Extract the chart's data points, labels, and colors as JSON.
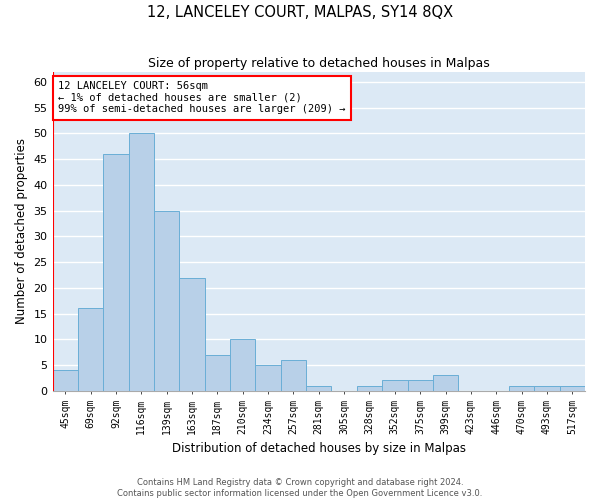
{
  "title": "12, LANCELEY COURT, MALPAS, SY14 8QX",
  "subtitle": "Size of property relative to detached houses in Malpas",
  "xlabel": "Distribution of detached houses by size in Malpas",
  "ylabel": "Number of detached properties",
  "categories": [
    "45sqm",
    "69sqm",
    "92sqm",
    "116sqm",
    "139sqm",
    "163sqm",
    "187sqm",
    "210sqm",
    "234sqm",
    "257sqm",
    "281sqm",
    "305sqm",
    "328sqm",
    "352sqm",
    "375sqm",
    "399sqm",
    "423sqm",
    "446sqm",
    "470sqm",
    "493sqm",
    "517sqm"
  ],
  "values": [
    4,
    16,
    46,
    50,
    35,
    22,
    7,
    10,
    5,
    6,
    1,
    0,
    1,
    2,
    2,
    3,
    0,
    0,
    1,
    1,
    1
  ],
  "bar_color": "#b8d0e8",
  "bar_edge_color": "#6aaed6",
  "vline_color": "red",
  "annotation_text": "12 LANCELEY COURT: 56sqm\n← 1% of detached houses are smaller (2)\n99% of semi-detached houses are larger (209) →",
  "annotation_box_color": "white",
  "annotation_box_edge_color": "red",
  "ylim": [
    0,
    62
  ],
  "yticks": [
    0,
    5,
    10,
    15,
    20,
    25,
    30,
    35,
    40,
    45,
    50,
    55,
    60
  ],
  "bg_color": "#dce9f5",
  "grid_color": "white",
  "footer_line1": "Contains HM Land Registry data © Crown copyright and database right 2024.",
  "footer_line2": "Contains public sector information licensed under the Open Government Licence v3.0."
}
